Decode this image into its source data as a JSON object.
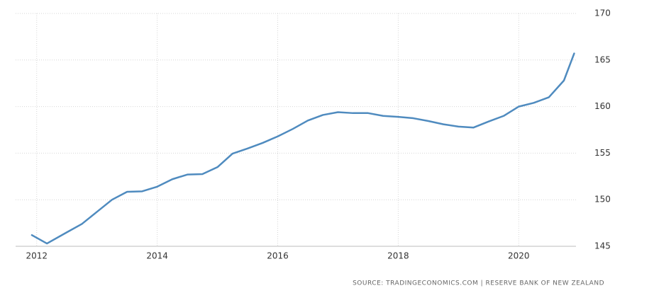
{
  "chart_data": {
    "type": "line",
    "source": "SOURCE: TRADINGECONOMICS.COM | RESERVE BANK OF NEW ZEALAND",
    "x": [
      2011.92,
      2012.17,
      2012.5,
      2012.75,
      2013.0,
      2013.25,
      2013.5,
      2013.75,
      2014.0,
      2014.25,
      2014.5,
      2014.75,
      2015.0,
      2015.25,
      2015.5,
      2015.75,
      2016.0,
      2016.25,
      2016.5,
      2016.75,
      2017.0,
      2017.25,
      2017.5,
      2017.75,
      2018.0,
      2018.25,
      2018.5,
      2018.75,
      2019.0,
      2019.25,
      2019.5,
      2019.75,
      2020.0,
      2020.25,
      2020.5,
      2020.75,
      2020.92
    ],
    "series": [
      {
        "color": "#4f8bbf",
        "values": [
          146.2,
          145.3,
          146.5,
          147.4,
          148.7,
          150.0,
          150.85,
          150.9,
          151.4,
          152.2,
          152.7,
          152.75,
          153.5,
          154.95,
          155.5,
          156.1,
          156.8,
          157.6,
          158.5,
          159.1,
          159.4,
          159.3,
          159.3,
          159.0,
          158.9,
          158.75,
          158.45,
          158.1,
          157.85,
          157.75,
          158.4,
          159.0,
          160.0,
          160.4,
          161.0,
          162.8,
          165.7
        ]
      }
    ],
    "xlim": [
      2011.65,
      2020.95
    ],
    "xticks": [
      2012,
      2014,
      2016,
      2018,
      2020
    ],
    "ylim": [
      145,
      170
    ],
    "yticks": [
      145,
      150,
      155,
      160,
      165,
      170
    ],
    "grid": true
  }
}
